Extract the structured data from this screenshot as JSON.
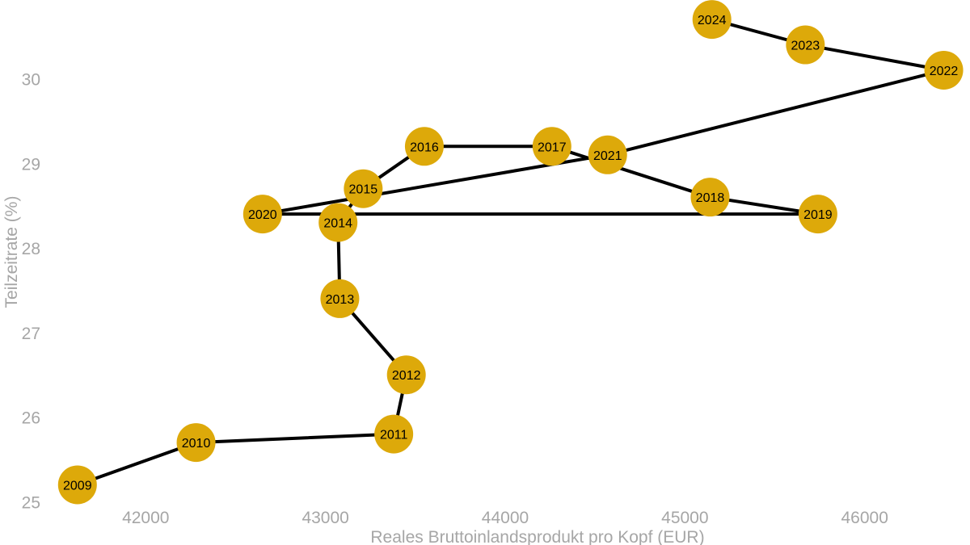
{
  "chart_data": {
    "type": "scatter",
    "connected": true,
    "title": "",
    "xlabel": "Reales Bruttoinlandsprodukt pro Kopf (EUR)",
    "ylabel": "Teilzeitrate (%)",
    "xlim": [
      41450,
      46550
    ],
    "ylim": [
      24.88,
      30.93
    ],
    "xticks": [
      42000,
      43000,
      44000,
      45000,
      46000
    ],
    "yticks": [
      25,
      26,
      27,
      28,
      29,
      30
    ],
    "grid": false,
    "colors": {
      "marker": "#DDA90A",
      "line": "#000000",
      "axis_text": "#a6a6a6"
    },
    "points": [
      {
        "label": "2009",
        "x": 41620,
        "y": 25.2
      },
      {
        "label": "2010",
        "x": 42280,
        "y": 25.7
      },
      {
        "label": "2011",
        "x": 43380,
        "y": 25.8
      },
      {
        "label": "2012",
        "x": 43450,
        "y": 26.5
      },
      {
        "label": "2013",
        "x": 43080,
        "y": 27.4
      },
      {
        "label": "2014",
        "x": 43070,
        "y": 28.3
      },
      {
        "label": "2015",
        "x": 43210,
        "y": 28.7
      },
      {
        "label": "2016",
        "x": 43550,
        "y": 29.2
      },
      {
        "label": "2017",
        "x": 44260,
        "y": 29.2
      },
      {
        "label": "2018",
        "x": 45140,
        "y": 28.6
      },
      {
        "label": "2019",
        "x": 45740,
        "y": 28.4
      },
      {
        "label": "2020",
        "x": 42650,
        "y": 28.4
      },
      {
        "label": "2021",
        "x": 44570,
        "y": 29.1
      },
      {
        "label": "2022",
        "x": 46440,
        "y": 30.1
      },
      {
        "label": "2023",
        "x": 45670,
        "y": 30.4
      },
      {
        "label": "2024",
        "x": 45150,
        "y": 30.7
      }
    ]
  }
}
